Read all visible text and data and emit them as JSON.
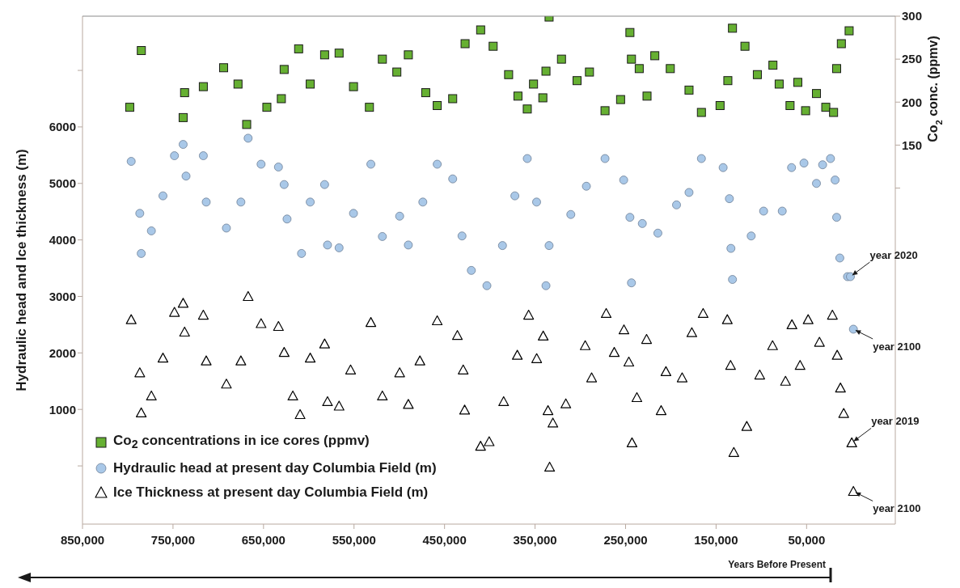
{
  "chart_data": {
    "type": "scatter",
    "ylabel": "Hydraulic head and Ice thickness (m)",
    "y2label": "Co$_{2}$ conc. (ppmv)",
    "xlim": [
      850000,
      -48000
    ],
    "xticks": [
      {
        "value": 850000,
        "label": "850,000"
      },
      {
        "value": 750000,
        "label": "750,000"
      },
      {
        "value": 650000,
        "label": "650,000"
      },
      {
        "value": 550000,
        "label": "550,000"
      },
      {
        "value": 450000,
        "label": "450,000"
      },
      {
        "value": 350000,
        "label": "350,000"
      },
      {
        "value": 250000,
        "label": "250,000"
      },
      {
        "value": 150000,
        "label": "150,000"
      },
      {
        "value": 50000,
        "label": "50,000"
      }
    ],
    "ylim": [
      -1030,
      7960
    ],
    "yticks": [
      {
        "value": 0,
        "label": null
      },
      1000,
      2000,
      3000,
      4000,
      5000,
      6000,
      {
        "value": 7000,
        "label": null
      }
    ],
    "y2lim": [
      -291,
      300
    ],
    "y2ticks": [
      {
        "value": 100,
        "label": null
      },
      150,
      200,
      250,
      300
    ],
    "legend": "bottom left",
    "series": [
      {
        "name": "Co$_{2}$ concentrations in ice cores (ppmv)",
        "color": "#66b032",
        "marker": "square",
        "axis": "y2",
        "x": [
          797800,
          785000,
          738800,
          737200,
          716500,
          694100,
          678200,
          668600,
          646300,
          630300,
          627200,
          611200,
          598400,
          582500,
          566500,
          550600,
          533000,
          518700,
          502700,
          490000,
          470800,
          458100,
          441000,
          427300,
          410100,
          396300,
          379200,
          368900,
          358600,
          351700,
          341400,
          334500,
          337950,
          320800,
          303600,
          289900,
          272700,
          255500,
          245200,
          243500,
          234900,
          226300,
          217700,
          200600,
          179900,
          166200,
          145600,
          137000,
          131900,
          118100,
          104400,
          87200,
          80300,
          68300,
          59700,
          51100,
          39100,
          28800,
          20200,
          16800,
          11600,
          3000
        ],
        "values": [
          194,
          260,
          182,
          211,
          218,
          240,
          221,
          174,
          194,
          204,
          238,
          262,
          221,
          255,
          257,
          218,
          194,
          250,
          235,
          255,
          211,
          196,
          204,
          268,
          284,
          265,
          232,
          207,
          192,
          221,
          205,
          299,
          236,
          250,
          225,
          235,
          190,
          203,
          281,
          250,
          239,
          207,
          254,
          239,
          214,
          188,
          196,
          225,
          286,
          265,
          232,
          243,
          221,
          196,
          223,
          190,
          210,
          194,
          188,
          239,
          268,
          283
        ]
      },
      {
        "name": "Hydraulic head at present day Columbia Field (m)",
        "color": "#a9c8e8",
        "marker": "circle",
        "x": [
          796200,
          786700,
          785100,
          773900,
          761100,
          748400,
          738800,
          735600,
          716500,
          713300,
          691000,
          675000,
          667000,
          652700,
          633500,
          627200,
          624000,
          608000,
          598400,
          582500,
          579300,
          566500,
          550600,
          531400,
          518700,
          499600,
          490000,
          474000,
          458100,
          441000,
          430700,
          420400,
          403200,
          386000,
          372300,
          358600,
          348300,
          337950,
          334500,
          310500,
          293300,
          272700,
          252100,
          245200,
          243500,
          231500,
          214300,
          193700,
          179900,
          166200,
          142200,
          135300,
          133600,
          131900,
          111200,
          97500,
          76900,
          66600,
          52900,
          39100,
          32300,
          23600,
          18500,
          16800,
          13300,
          4800,
          1600,
          -1700
        ],
        "values": [
          5390,
          4470,
          3760,
          4160,
          4780,
          5490,
          5690,
          5130,
          5490,
          4670,
          4210,
          4670,
          5800,
          5340,
          5290,
          4980,
          4370,
          3760,
          4670,
          4980,
          3910,
          3860,
          4470,
          5340,
          4060,
          4420,
          3910,
          4670,
          5340,
          5080,
          4070,
          3460,
          3190,
          3900,
          4780,
          5440,
          4670,
          3190,
          3900,
          4450,
          4950,
          5440,
          5060,
          4400,
          3240,
          4290,
          4120,
          4620,
          4840,
          5440,
          5280,
          4730,
          3850,
          3300,
          4070,
          4510,
          4510,
          5280,
          5360,
          5000,
          5330,
          5440,
          5060,
          4400,
          3680,
          3350,
          3350,
          2420
        ]
      },
      {
        "name": "Ice Thickness at present day Columbia Field (m)",
        "color": "#000000",
        "marker": "triangle",
        "x": [
          796200,
          786700,
          785100,
          773900,
          761100,
          748400,
          738800,
          737200,
          716500,
          713300,
          691000,
          675000,
          667000,
          652700,
          633500,
          627200,
          617600,
          609600,
          598400,
          582500,
          579300,
          566500,
          553800,
          531400,
          518700,
          499600,
          490000,
          477200,
          458100,
          435800,
          429400,
          427800,
          410200,
          400700,
          384700,
          369600,
          357100,
          348200,
          341000,
          335700,
          333900,
          330300,
          316000,
          294600,
          287500,
          271400,
          262500,
          251800,
          246400,
          242900,
          237500,
          226800,
          210700,
          205400,
          187500,
          176800,
          164300,
          137600,
          134000,
          130400,
          116100,
          101800,
          87600,
          73300,
          66200,
          57200,
          48300,
          35800,
          21500,
          16200,
          12600,
          9000,
          100,
          -1700
        ],
        "values": [
          2590,
          1650,
          940,
          1240,
          1910,
          2720,
          2880,
          2370,
          2670,
          1860,
          1450,
          1860,
          3000,
          2520,
          2470,
          2010,
          1240,
          910,
          1910,
          2160,
          1140,
          1060,
          1700,
          2540,
          1240,
          1650,
          1090,
          1860,
          2570,
          2310,
          1700,
          990,
          350,
          430,
          1140,
          1960,
          2670,
          1900,
          2300,
          980,
          -20,
          760,
          1100,
          2130,
          1560,
          2700,
          2010,
          2410,
          1840,
          410,
          1210,
          2240,
          980,
          1670,
          1560,
          2360,
          2700,
          2590,
          1780,
          240,
          700,
          1610,
          2130,
          1500,
          2500,
          1780,
          2590,
          2190,
          2670,
          1960,
          1380,
          930,
          410,
          -450
        ]
      }
    ],
    "annotations": [
      {
        "text": "year 2020",
        "x": 1600,
        "y": 3350
      },
      {
        "text": "year 2100",
        "x": -1700,
        "y": 2420
      },
      {
        "text": "year 2019",
        "x": 100,
        "y": 410
      },
      {
        "text": "year 2100",
        "x": -1700,
        "y": -450
      },
      "Years Before Present"
    ]
  }
}
